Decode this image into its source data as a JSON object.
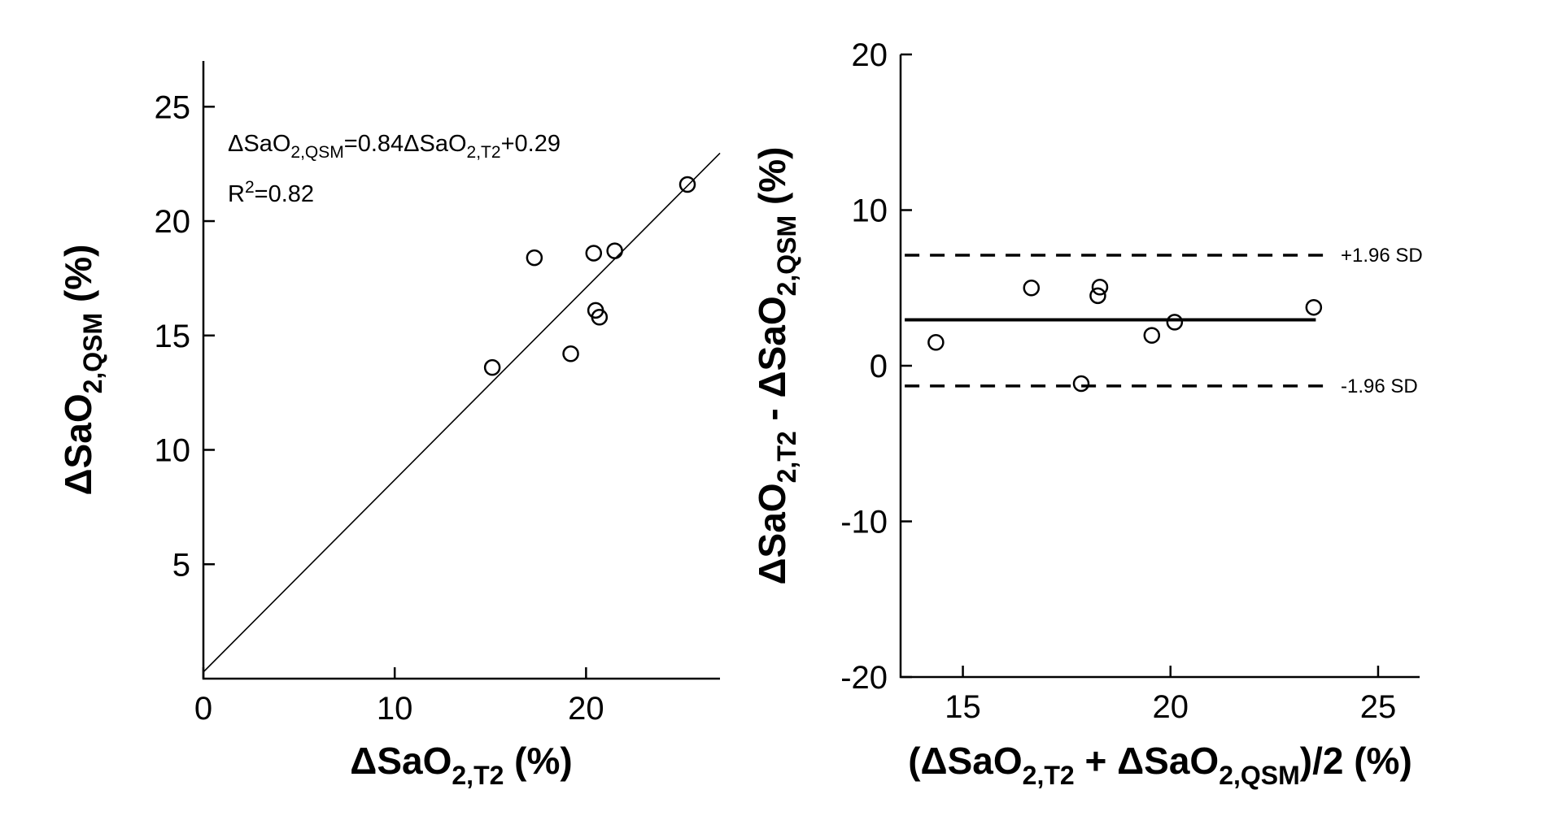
{
  "figure": {
    "background": "#ffffff",
    "axis_color": "#000000",
    "marker_color": "#000000"
  },
  "chart_data": [
    {
      "id": "regression-scatter",
      "type": "scatter",
      "xlabel": {
        "p1": "ΔSaO",
        "sub1": "2,T2",
        "p2": " (%)"
      },
      "ylabel": {
        "p1": "ΔSaO",
        "sub1": "2,QSM",
        "p2": " (%)"
      },
      "xlim": [
        0,
        27
      ],
      "ylim": [
        0,
        27
      ],
      "xticks": [
        0,
        10,
        20
      ],
      "yticks": [
        5,
        10,
        15,
        20,
        25
      ],
      "points": [
        [
          15.1,
          13.6
        ],
        [
          17.3,
          18.4
        ],
        [
          19.2,
          14.2
        ],
        [
          20.4,
          18.6
        ],
        [
          20.5,
          16.1
        ],
        [
          20.7,
          15.8
        ],
        [
          21.5,
          18.7
        ],
        [
          25.3,
          21.6
        ]
      ],
      "fit_line": {
        "slope": 0.84,
        "intercept": 0.29,
        "x_start": 0,
        "x_end": 27
      },
      "annotation": {
        "eq_p1": "ΔSaO",
        "eq_sub1": "2,QSM",
        "eq_p2": "=0.84ΔSaO",
        "eq_sub2": "2,T2",
        "eq_p3": "+0.29",
        "r2_p1": "R",
        "r2_sup": "2",
        "r2_p2": "=0.82"
      }
    },
    {
      "id": "bland-altman",
      "type": "scatter",
      "xlabel": {
        "p1": "(ΔSaO",
        "sub1": "2,T2",
        "p2": " + ΔSaO",
        "sub2": "2,QSM",
        "p3": ")/2 (%)"
      },
      "ylabel": {
        "p1": "ΔSaO",
        "sub1": "2,T2",
        "p2": " - ΔSaO",
        "sub2": "2,QSM",
        "p3": " (%)"
      },
      "xlim": [
        13.5,
        26
      ],
      "ylim": [
        -20,
        20
      ],
      "xticks": [
        15,
        20,
        25
      ],
      "yticks": [
        -20,
        -10,
        0,
        10,
        20
      ],
      "points": [
        [
          14.35,
          1.5
        ],
        [
          16.65,
          5.0
        ],
        [
          17.85,
          -1.15
        ],
        [
          18.25,
          4.5
        ],
        [
          18.3,
          5.05
        ],
        [
          19.55,
          1.95
        ],
        [
          20.1,
          2.8
        ],
        [
          23.45,
          3.75
        ]
      ],
      "mean_line": {
        "y": 2.95,
        "x_start": 13.6,
        "x_end": 23.5
      },
      "upper_loa": {
        "y": 7.1,
        "x_start": 13.6,
        "x_end": 23.9,
        "label": "+1.96 SD"
      },
      "lower_loa": {
        "y": -1.3,
        "x_start": 13.6,
        "x_end": 23.9,
        "label": "-1.96 SD"
      }
    }
  ]
}
